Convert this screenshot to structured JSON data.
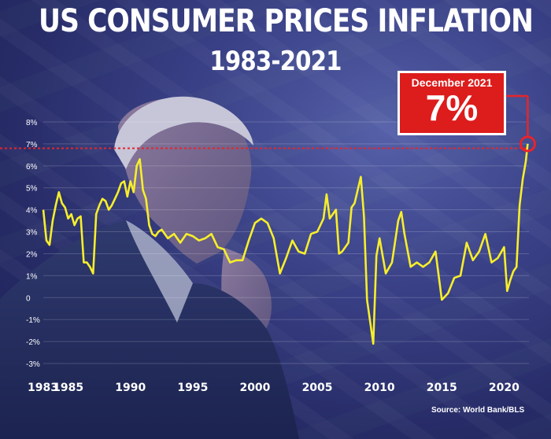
{
  "title": "US CONSUMER PRICES INFLATION",
  "subtitle": "1983-2021",
  "callout": {
    "label": "December 2021",
    "value": "7%"
  },
  "source": "Source: World Bank/BLS",
  "colors": {
    "line": "#f7ee2b",
    "reference": "#e8242a",
    "callout": "#dd1c1c",
    "background": "#2f3579"
  },
  "chart_data": {
    "type": "line",
    "title": "US CONSUMER PRICES INFLATION",
    "subtitle": "1983-2021",
    "xlabel": "",
    "ylabel": "",
    "ylim": [
      -3,
      8
    ],
    "xlim": [
      1983,
      2022
    ],
    "y_ticks": [
      "8%",
      "7%",
      "6%",
      "5%",
      "4%",
      "3%",
      "2%",
      "1%",
      "0",
      "-1%",
      "-2%",
      "-3%"
    ],
    "y_tick_values": [
      8,
      7,
      6,
      5,
      4,
      3,
      2,
      1,
      0,
      -1,
      -2,
      -3
    ],
    "x_ticks": [
      "1983",
      "1985",
      "1990",
      "1995",
      "2000",
      "2005",
      "2010",
      "2015",
      "2020"
    ],
    "x_tick_values": [
      1983,
      1985,
      1990,
      1995,
      2000,
      2005,
      2010,
      2015,
      2020
    ],
    "grid": true,
    "reference_line": {
      "y": 6.8,
      "style": "dashed"
    },
    "annotation": {
      "text": "December 2021 7%",
      "x": 2021.9,
      "y": 7.0
    },
    "series": [
      {
        "x": [
          1983.0,
          1983.25,
          1983.5,
          1983.75,
          1984.0,
          1984.25,
          1984.5,
          1984.75,
          1985.0,
          1985.25,
          1985.5,
          1985.75,
          1986.0,
          1986.25,
          1986.5,
          1986.75,
          1987.0,
          1987.25,
          1987.5,
          1987.75,
          1988.0,
          1988.25,
          1988.5,
          1988.75,
          1989.0,
          1989.25,
          1989.5,
          1989.75,
          1990.0,
          1990.25,
          1990.5,
          1990.75,
          1991.0,
          1991.25,
          1991.5,
          1991.75,
          1992.0,
          1992.25,
          1992.5,
          1992.75,
          1993.0,
          1993.5,
          1994.0,
          1994.5,
          1995.0,
          1995.5,
          1996.0,
          1996.5,
          1997.0,
          1997.5,
          1998.0,
          1998.5,
          1999.0,
          1999.5,
          2000.0,
          2000.5,
          2001.0,
          2001.5,
          2001.75,
          2002.0,
          2002.5,
          2003.0,
          2003.5,
          2004.0,
          2004.5,
          2005.0,
          2005.5,
          2005.75,
          2006.0,
          2006.5,
          2006.75,
          2007.0,
          2007.5,
          2007.75,
          2008.0,
          2008.5,
          2008.75,
          2009.0,
          2009.5,
          2009.75,
          2010.0,
          2010.5,
          2011.0,
          2011.5,
          2011.75,
          2012.0,
          2012.5,
          2013.0,
          2013.5,
          2014.0,
          2014.5,
          2015.0,
          2015.5,
          2016.0,
          2016.5,
          2017.0,
          2017.5,
          2018.0,
          2018.5,
          2019.0,
          2019.5,
          2020.0,
          2020.25,
          2020.5,
          2020.75,
          2021.0,
          2021.25,
          2021.5,
          2021.75,
          2021.9
        ],
        "values": [
          4.0,
          2.6,
          2.4,
          3.5,
          4.2,
          4.8,
          4.3,
          4.1,
          3.6,
          3.8,
          3.3,
          3.6,
          3.7,
          1.6,
          1.6,
          1.4,
          1.1,
          3.8,
          4.2,
          4.5,
          4.4,
          4.0,
          4.2,
          4.5,
          4.8,
          5.2,
          5.3,
          4.6,
          5.3,
          4.8,
          6.0,
          6.3,
          4.9,
          4.5,
          3.3,
          2.9,
          2.8,
          3.0,
          3.1,
          2.9,
          2.7,
          2.9,
          2.5,
          2.9,
          2.8,
          2.6,
          2.7,
          2.9,
          2.3,
          2.2,
          1.6,
          1.7,
          1.7,
          2.6,
          3.4,
          3.6,
          3.4,
          2.7,
          1.9,
          1.1,
          1.8,
          2.6,
          2.1,
          2.0,
          2.9,
          3.0,
          3.6,
          4.7,
          3.6,
          4.0,
          2.0,
          2.1,
          2.5,
          4.1,
          4.3,
          5.5,
          3.7,
          -0.1,
          -2.1,
          1.9,
          2.7,
          1.1,
          1.6,
          3.5,
          3.9,
          2.9,
          1.4,
          1.6,
          1.4,
          1.6,
          2.1,
          -0.1,
          0.2,
          0.9,
          1.0,
          2.5,
          1.7,
          2.1,
          2.9,
          1.6,
          1.8,
          2.3,
          0.3,
          0.8,
          1.2,
          1.4,
          4.2,
          5.4,
          6.2,
          7.0
        ]
      }
    ]
  }
}
